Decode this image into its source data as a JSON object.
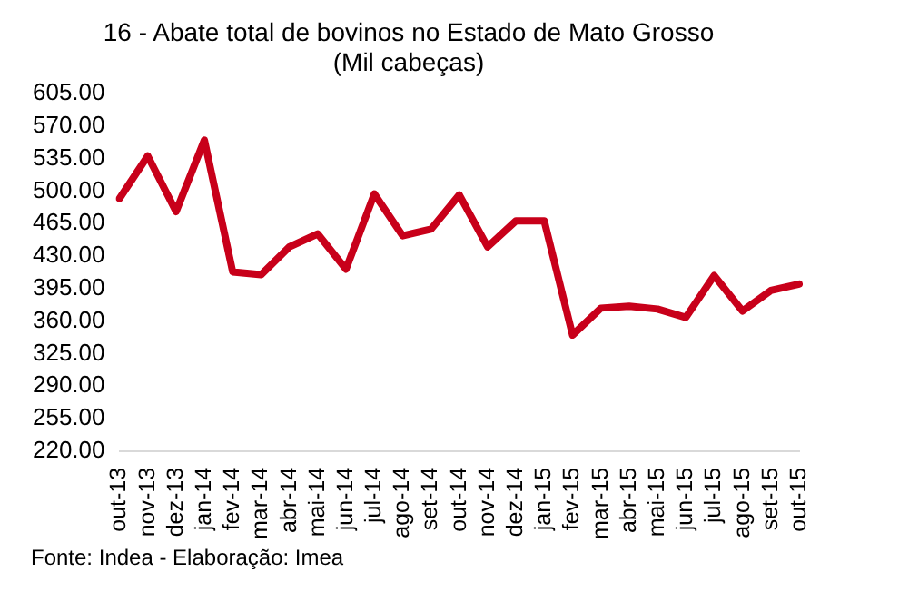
{
  "chart_data": {
    "type": "line",
    "title": [
      "16 - Abate total de bovinos no Estado de Mato Grosso",
      "(Mil cabeças)"
    ],
    "categories": [
      "out-13",
      "nov-13",
      "dez-13",
      "jan-14",
      "fev-14",
      "mar-14",
      "abr-14",
      "mai-14",
      "jun-14",
      "jul-14",
      "ago-14",
      "set-14",
      "out-14",
      "nov-14",
      "dez-14",
      "jan-15",
      "fev-15",
      "mar-15",
      "abr-15",
      "mai-15",
      "jun-15",
      "jul-15",
      "ago-15",
      "set-15",
      "out-15"
    ],
    "series": [
      {
        "color": "#c8001a",
        "values": [
          492,
          538,
          478,
          555,
          413,
          410,
          440,
          454,
          416,
          497,
          452,
          459,
          496,
          440,
          468,
          468,
          345,
          374,
          376,
          373,
          364,
          409,
          371,
          393,
          400
        ]
      }
    ],
    "ylim": [
      220,
      605
    ],
    "yticks": [
      {
        "value": 220,
        "label": "220.00"
      },
      {
        "value": 255,
        "label": "255.00"
      },
      {
        "value": 290,
        "label": "290.00"
      },
      {
        "value": 325,
        "label": "325.00"
      },
      {
        "value": 360,
        "label": "360.00"
      },
      {
        "value": 395,
        "label": "395.00"
      },
      {
        "value": 430,
        "label": "430.00"
      },
      {
        "value": 465,
        "label": "465.00"
      },
      {
        "value": 500,
        "label": "500.00"
      },
      {
        "value": 535,
        "label": "535.00"
      },
      {
        "value": 570,
        "label": "570.00"
      },
      {
        "value": 605,
        "label": "605.00"
      }
    ],
    "grid": false,
    "legend": false,
    "marker": "none",
    "line_style": "solid",
    "annotations": [
      "Fonte: Indea - Elaboração: Imea"
    ]
  }
}
